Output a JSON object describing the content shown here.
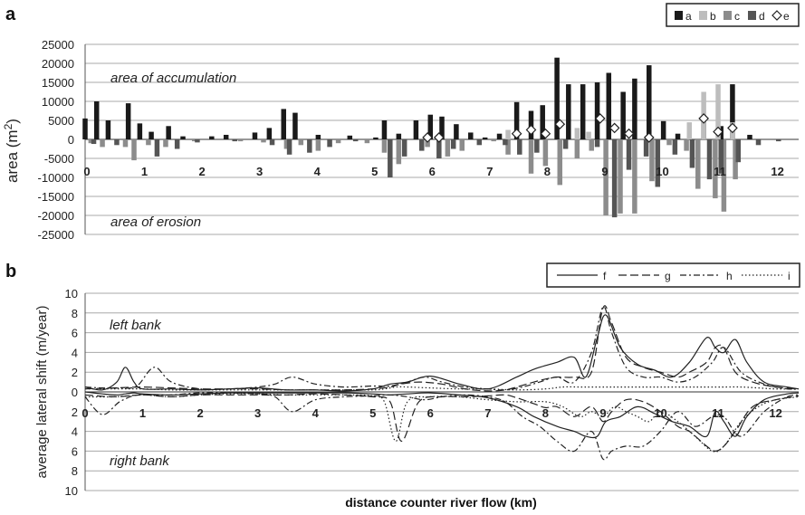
{
  "chart_data": [
    {
      "panel_label": "a",
      "type": "bar",
      "ylabel_main": "area (m",
      "ylabel_sup": "2",
      "ylabel_end": ")",
      "ylim": [
        -25000,
        25000
      ],
      "yticks": [
        "25000",
        "20000",
        "15000",
        "10000",
        "5000",
        "0",
        "-5000",
        "-10000",
        "-15000",
        "-20000",
        "-25000"
      ],
      "xlim": [
        0,
        12.4
      ],
      "xticks": [
        "0",
        "1",
        "2",
        "3",
        "4",
        "5",
        "6",
        "7",
        "8",
        "9",
        "10",
        "11",
        "12"
      ],
      "annotations": [
        "area of accumulation",
        "area of erosion"
      ],
      "grid": true,
      "legend": "top-right",
      "series": [
        {
          "name": "a",
          "color": "#1a1a1a",
          "x": [
            0.0,
            0.2,
            0.4,
            0.6,
            0.75,
            0.95,
            1.15,
            1.45,
            1.7,
            2.2,
            2.45,
            2.95,
            3.2,
            3.45,
            3.65,
            4.05,
            4.6,
            5.05,
            5.2,
            5.45,
            5.75,
            6.0,
            6.2,
            6.45,
            6.7,
            6.95,
            7.2,
            7.5,
            7.75,
            7.95,
            8.2,
            8.4,
            8.65,
            8.9,
            9.1,
            9.35,
            9.55,
            9.8,
            9.9,
            10.05,
            10.3,
            10.5,
            10.75,
            11.05,
            11.25,
            11.55
          ],
          "values": [
            5500,
            10000,
            5000,
            0,
            9500,
            4200,
            2000,
            3500,
            800,
            800,
            1200,
            1800,
            3000,
            8000,
            7000,
            1200,
            1000,
            500,
            5000,
            1500,
            5000,
            6500,
            6000,
            4000,
            1800,
            500,
            1500,
            9800,
            7500,
            9000,
            21500,
            14500,
            14500,
            15000,
            17500,
            12500,
            16000,
            19500,
            0,
            4800,
            1500,
            1000,
            5500,
            3500,
            14500,
            1200
          ]
        },
        {
          "name": "b",
          "color": "#bdbdbd",
          "x": [
            7.35,
            8.55,
            8.75,
            10.5,
            10.75,
            11.0,
            11.25
          ],
          "values": [
            2500,
            3000,
            2000,
            4500,
            12500,
            14500,
            4500
          ]
        },
        {
          "name": "c",
          "color": "#8c8c8c",
          "x": [
            0.1,
            0.3,
            0.7,
            0.85,
            1.1,
            1.4,
            1.9,
            2.7,
            3.1,
            3.5,
            3.75,
            4.05,
            4.4,
            4.9,
            5.2,
            5.45,
            5.95,
            6.3,
            6.55,
            7.1,
            7.35,
            7.75,
            8.0,
            8.25,
            8.55,
            8.8,
            9.05,
            9.3,
            9.55,
            9.85,
            10.15,
            10.45,
            10.65,
            10.95,
            11.1,
            11.3
          ],
          "values": [
            -1000,
            -2000,
            -2000,
            -5500,
            -1500,
            -2000,
            -500,
            -500,
            -800,
            -2500,
            -1500,
            -3000,
            -1000,
            -1000,
            -3500,
            -6500,
            -2000,
            -4500,
            -3000,
            -500,
            -4000,
            -9000,
            -7000,
            -12000,
            -5000,
            -3000,
            -20000,
            -19500,
            -19500,
            -11000,
            -1500,
            -3000,
            -13000,
            -15500,
            -19000,
            -10500
          ]
        },
        {
          "name": "d",
          "color": "#555555",
          "x": [
            0.15,
            0.55,
            1.25,
            1.6,
            1.95,
            2.6,
            3.25,
            3.55,
            3.9,
            4.25,
            4.7,
            5.3,
            5.55,
            5.85,
            6.15,
            6.4,
            6.85,
            7.3,
            7.55,
            7.85,
            8.35,
            8.9,
            9.2,
            9.45,
            9.75,
            9.95,
            10.25,
            10.55,
            10.85,
            11.05,
            11.35,
            11.7,
            12.05
          ],
          "values": [
            -1200,
            -1500,
            -4500,
            -2500,
            -800,
            -500,
            -1500,
            -4000,
            -3500,
            -2000,
            -500,
            -10000,
            -4500,
            -3000,
            -5000,
            -2500,
            -1500,
            -1500,
            -4000,
            -3500,
            -2500,
            -2000,
            -20500,
            -8000,
            -4500,
            -12500,
            -4000,
            -7500,
            -10500,
            -9000,
            -6000,
            -1500,
            -500
          ]
        },
        {
          "name": "e",
          "color": "#ffffff",
          "marker": "diamond",
          "x": [
            5.95,
            6.15,
            7.5,
            7.75,
            8.0,
            8.25,
            8.95,
            9.2,
            9.45,
            9.8,
            10.75,
            11.0,
            11.25
          ],
          "values": [
            500,
            500,
            1500,
            2500,
            1500,
            4000,
            5500,
            3000,
            1500,
            500,
            5500,
            2000,
            3000
          ]
        }
      ]
    },
    {
      "panel_label": "b",
      "type": "line",
      "ylabel": "average lateral shift (m/year)",
      "xlabel": "distance counter river flow (km)",
      "yticks_top": [
        "10",
        "8",
        "6",
        "4",
        "2",
        "0"
      ],
      "yticks_bottom": [
        "2",
        "4",
        "6",
        "8",
        "10"
      ],
      "xticks": [
        "0",
        "1",
        "2",
        "3",
        "4",
        "5",
        "6",
        "7",
        "8",
        "9",
        "10",
        "11",
        "12"
      ],
      "xlim": [
        0,
        12.4
      ],
      "annotations": [
        "left bank",
        "right bank"
      ],
      "grid": true,
      "legend": "top-right",
      "series": [
        {
          "name": "f",
          "style": "solid",
          "x": [
            0,
            0.3,
            0.55,
            0.7,
            0.85,
            1.0,
            1.5,
            2.0,
            2.5,
            3.0,
            3.5,
            4.0,
            4.5,
            5.0,
            5.3,
            5.6,
            6.0,
            6.5,
            7.0,
            7.5,
            7.8,
            8.2,
            8.5,
            8.7,
            8.9,
            9.05,
            9.3,
            9.6,
            9.9,
            10.2,
            10.5,
            10.8,
            10.95,
            11.1,
            11.3,
            11.5,
            11.8,
            12.2,
            12.4
          ],
          "left": [
            0.5,
            0.2,
            1.0,
            2.5,
            1.0,
            0.3,
            0.3,
            0.2,
            0.3,
            0.4,
            0.2,
            0.2,
            0.1,
            0.3,
            0.8,
            1.0,
            1.6,
            0.8,
            0.3,
            1.5,
            2.3,
            3.0,
            3.5,
            1.5,
            5.5,
            7.8,
            4.5,
            2.8,
            2.2,
            1.5,
            3.0,
            5.5,
            4.5,
            4.0,
            5.3,
            3.0,
            1.0,
            0.5,
            0.3
          ],
          "right": [
            0,
            0.2,
            0.3,
            0.2,
            0.1,
            0.2,
            0.3,
            0.2,
            0.1,
            0.1,
            0.1,
            0.1,
            0.1,
            0.2,
            0.3,
            0.2,
            0.1,
            0.3,
            0.6,
            1.5,
            2.5,
            3.5,
            4.0,
            4.5,
            4.5,
            3.0,
            2.5,
            1.5,
            2.2,
            3.0,
            3.5,
            4.5,
            2.0,
            3.0,
            4.5,
            2.5,
            0.8,
            0.2,
            0.1
          ]
        },
        {
          "name": "g",
          "style": "dashed",
          "x": [
            0,
            0.5,
            1.0,
            1.5,
            2.0,
            2.5,
            3.0,
            3.5,
            4.0,
            4.5,
            5.0,
            5.3,
            5.5,
            5.8,
            6.2,
            6.6,
            7.0,
            7.3,
            7.5,
            7.8,
            8.0,
            8.2,
            8.5,
            8.8,
            9.0,
            9.15,
            9.4,
            9.7,
            10.0,
            10.3,
            10.5,
            10.8,
            10.95,
            11.1,
            11.3,
            11.6,
            12.0,
            12.4
          ],
          "left": [
            0.3,
            0.4,
            0.5,
            0.4,
            0.3,
            0.3,
            0.3,
            0.2,
            0.2,
            0.2,
            0.3,
            0.5,
            0.8,
            1.0,
            0.8,
            0.3,
            0.1,
            0.2,
            0.5,
            1.0,
            1.3,
            1.5,
            1.5,
            2.0,
            8.5,
            7.0,
            3.5,
            2.5,
            2.0,
            1.5,
            2.0,
            3.0,
            4.5,
            4.5,
            2.0,
            1.0,
            0.5,
            0.3
          ],
          "right": [
            0.3,
            0.5,
            0.3,
            0.5,
            0.3,
            0.3,
            0.3,
            0.3,
            0.2,
            0.3,
            0.5,
            1.0,
            5.0,
            1.0,
            0.5,
            0.5,
            0.4,
            0.3,
            0.6,
            1.2,
            1.6,
            1.5,
            2.5,
            1.5,
            3.0,
            2.0,
            0.8,
            1.0,
            2.0,
            3.5,
            4.0,
            5.5,
            6.0,
            5.5,
            4.0,
            1.5,
            0.8,
            0.4
          ]
        },
        {
          "name": "h",
          "style": "dashdot",
          "x": [
            0,
            0.3,
            0.6,
            0.9,
            1.2,
            1.5,
            2.0,
            2.5,
            3.0,
            3.3,
            3.6,
            4.0,
            4.5,
            5.0,
            5.3,
            5.6,
            5.9,
            6.2,
            6.6,
            7.0,
            7.3,
            7.6,
            7.9,
            8.2,
            8.5,
            8.8,
            9.0,
            9.15,
            9.4,
            9.7,
            10.0,
            10.3,
            10.6,
            10.9,
            11.1,
            11.4,
            11.8,
            12.2,
            12.4
          ],
          "left": [
            0.5,
            0.4,
            0.4,
            0.6,
            2.5,
            1.0,
            0.3,
            0.3,
            0.5,
            0.8,
            1.5,
            0.8,
            0.5,
            0.6,
            0.6,
            1.0,
            1.5,
            1.0,
            0.5,
            0.3,
            0.2,
            0.5,
            1.0,
            1.5,
            1.0,
            4.0,
            8.6,
            6.0,
            2.5,
            1.5,
            1.5,
            1.0,
            1.5,
            3.0,
            4.5,
            2.0,
            0.8,
            0.3,
            0.3
          ],
          "right": [
            0.5,
            2.3,
            1.0,
            0.3,
            0.3,
            0.3,
            0.1,
            0.1,
            0.2,
            0.5,
            2.0,
            0.8,
            0.5,
            0.4,
            0.3,
            0.5,
            0.8,
            0.5,
            0.3,
            0.5,
            1.0,
            2.5,
            3.5,
            5.0,
            6.0,
            4.0,
            6.8,
            6.0,
            5.5,
            5.5,
            4.0,
            2.0,
            3.5,
            2.5,
            2.5,
            4.5,
            2.0,
            0.5,
            0.3
          ]
        },
        {
          "name": "i",
          "style": "dotted",
          "x": [
            0,
            0.5,
            1.0,
            1.5,
            2.0,
            2.5,
            3.0,
            3.5,
            4.0,
            4.5,
            5.0,
            5.2,
            5.4,
            5.6,
            6.0,
            6.5,
            7.0,
            7.5,
            8.0,
            8.3,
            8.6,
            8.8,
            9.0,
            9.2,
            9.4,
            9.6,
            9.8,
            10.0,
            10.3,
            10.6,
            10.9,
            11.1,
            11.4,
            11.7,
            12.0,
            12.4
          ],
          "left": [
            0.3,
            0.3,
            0.3,
            0.2,
            0.2,
            0.2,
            0.2,
            0.2,
            0.2,
            0.2,
            0.2,
            0.3,
            0.5,
            0.5,
            0.4,
            0.3,
            0.3,
            0.2,
            0.3,
            0.5,
            0.5,
            0.5,
            0.5,
            0.5,
            0.5,
            0.5,
            0.5,
            0.5,
            0.5,
            0.5,
            0.5,
            0.5,
            0.5,
            0.4,
            0.3,
            0.3
          ],
          "right": [
            0.5,
            0.5,
            0.3,
            0.5,
            0.3,
            0.2,
            0.2,
            0.3,
            0.3,
            0.3,
            0.4,
            1.0,
            5.0,
            1.0,
            0.5,
            0.5,
            0.8,
            1.0,
            1.0,
            1.5,
            2.5,
            2.0,
            2.5,
            1.5,
            2.0,
            2.5,
            3.0,
            2.0,
            3.0,
            4.5,
            6.0,
            5.5,
            3.0,
            1.5,
            0.8,
            0.5
          ]
        }
      ]
    }
  ]
}
